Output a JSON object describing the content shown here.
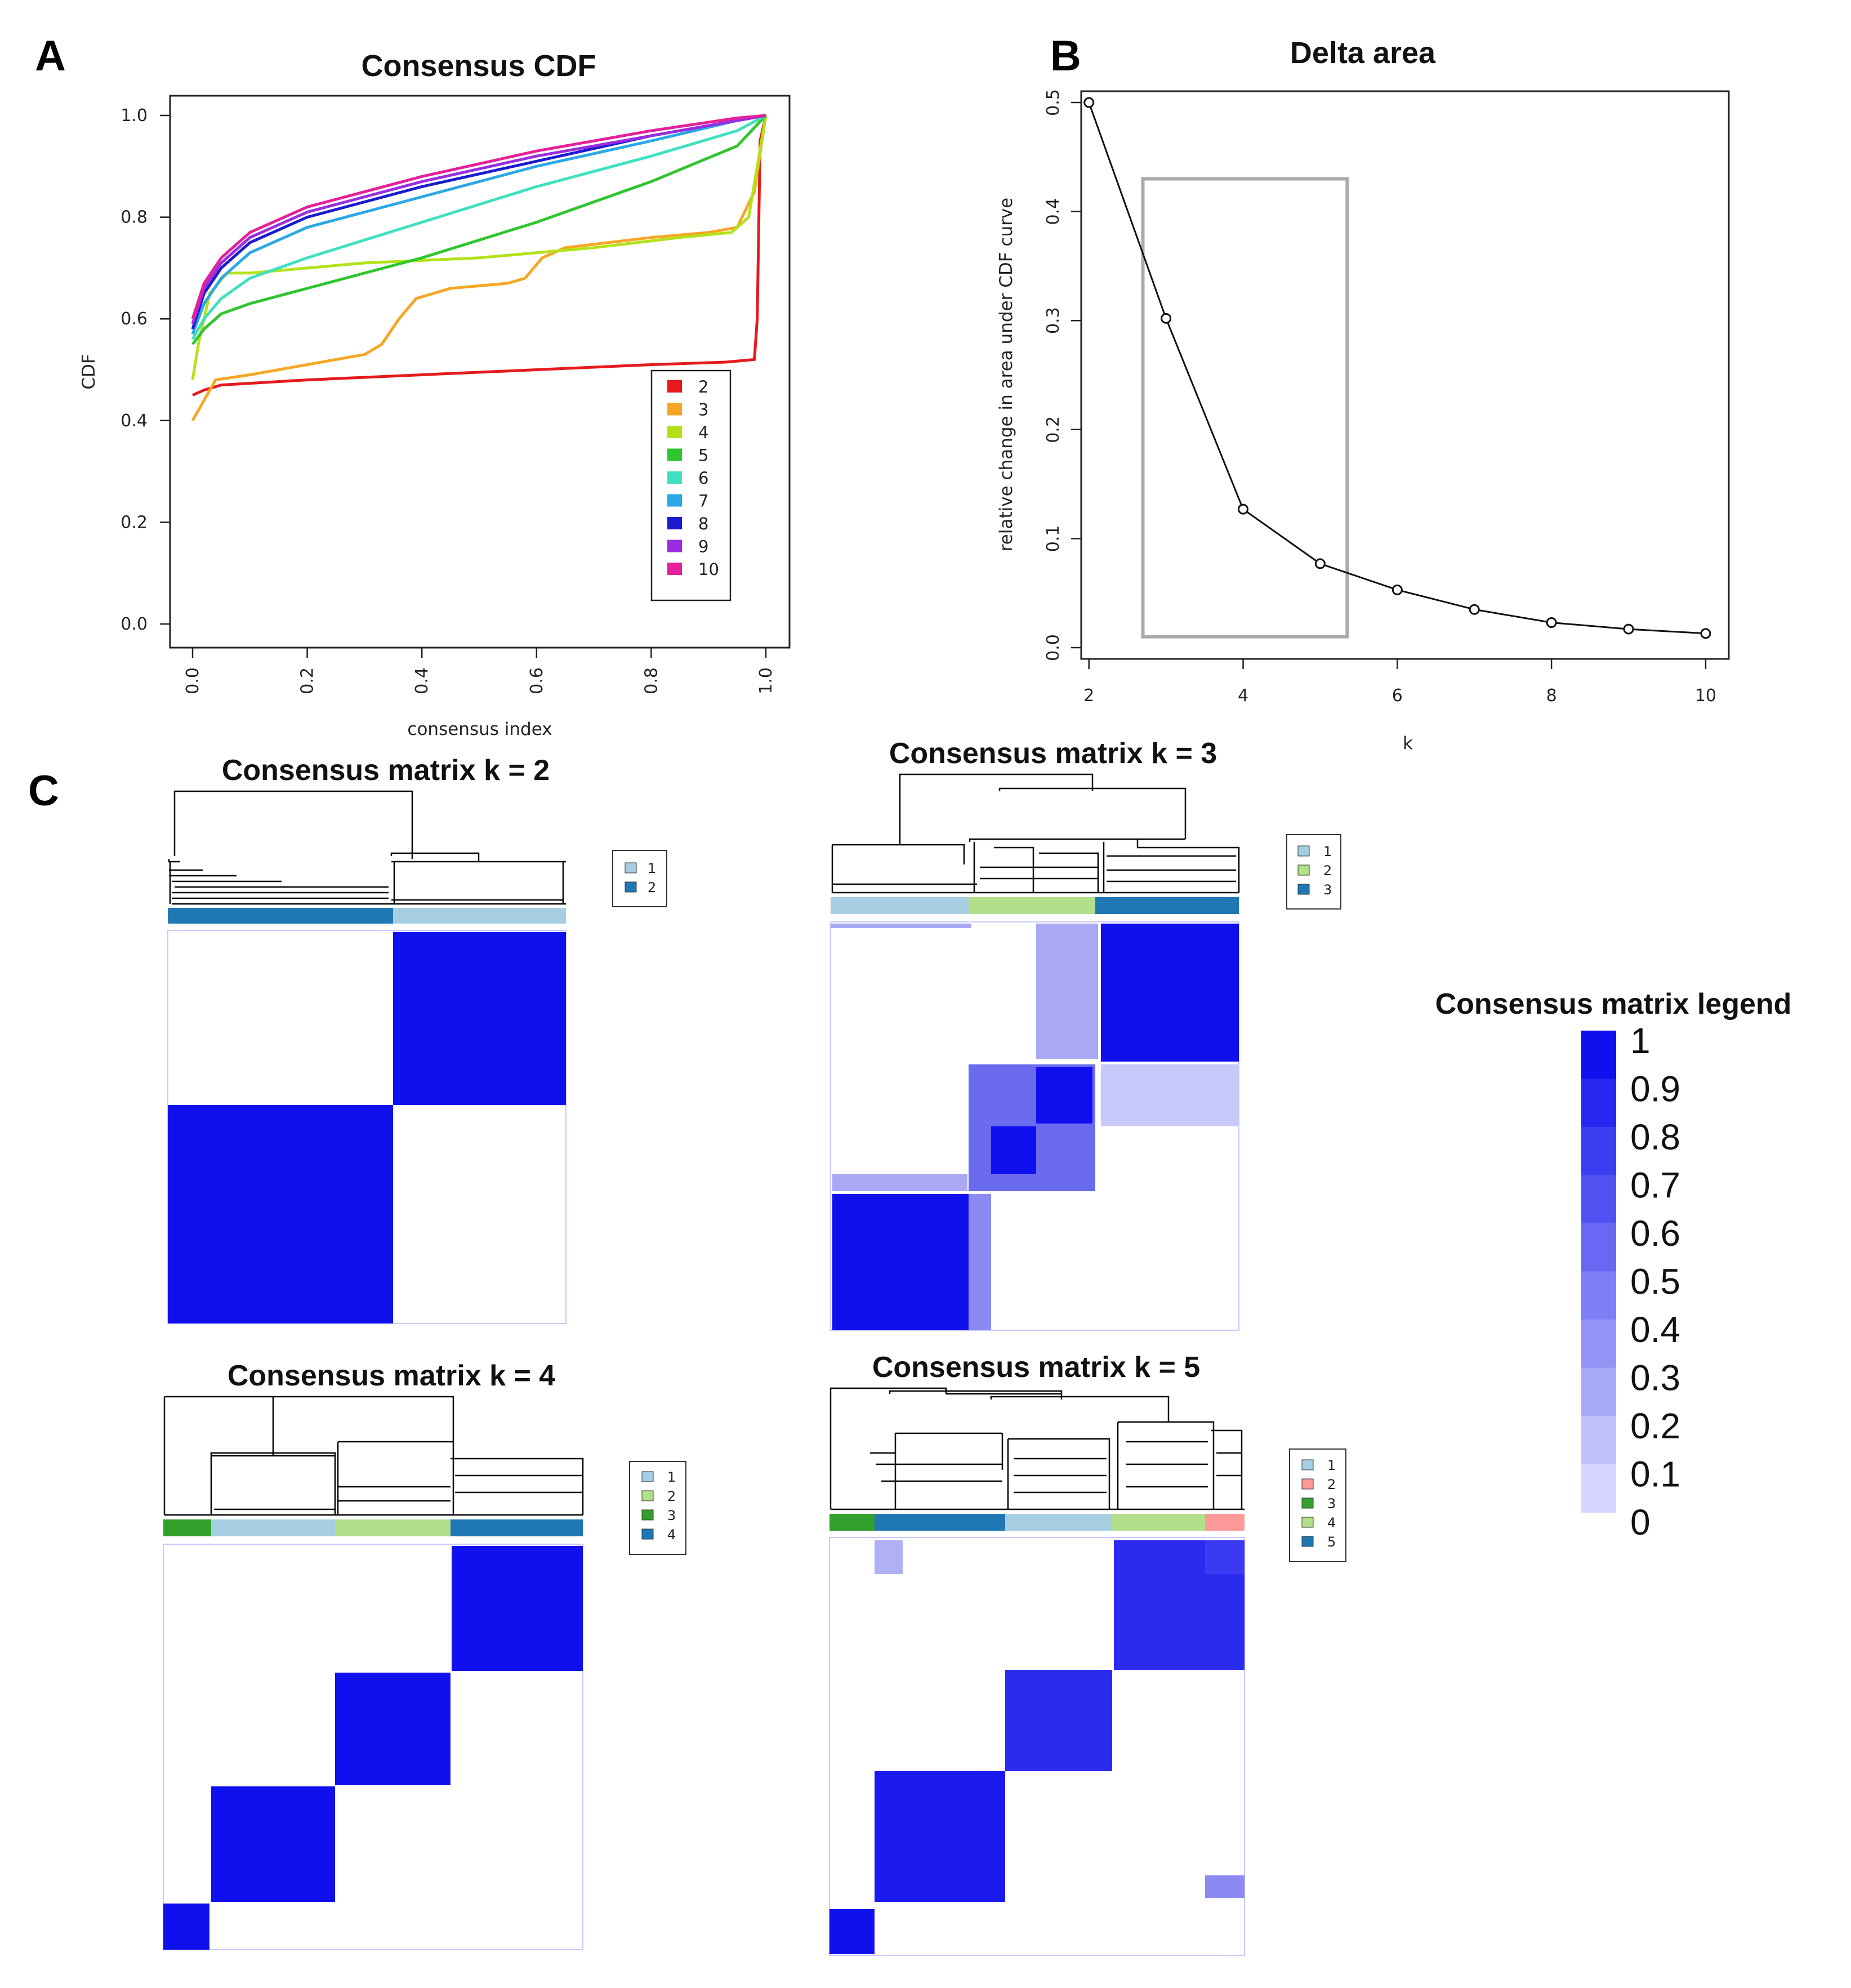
{
  "panels": {
    "a": "A",
    "b": "B",
    "c": "C"
  },
  "chart_data": [
    {
      "id": "consensus_cdf",
      "type": "line",
      "title": "Consensus CDF",
      "xlabel": "consensus index",
      "ylabel": "CDF",
      "xlim": [
        0,
        1
      ],
      "ylim": [
        0,
        1
      ],
      "xticks": [
        "0.0",
        "0.2",
        "0.4",
        "0.6",
        "0.8",
        "1.0"
      ],
      "yticks": [
        "0.0",
        "0.2",
        "0.4",
        "0.6",
        "0.8",
        "1.0"
      ],
      "legend_position": "bottom-right",
      "series": [
        {
          "name": "2",
          "color": "#e41a1c",
          "points": [
            [
              0,
              0.45
            ],
            [
              0.02,
              0.46
            ],
            [
              0.05,
              0.47
            ],
            [
              0.2,
              0.48
            ],
            [
              0.4,
              0.49
            ],
            [
              0.6,
              0.5
            ],
            [
              0.8,
              0.51
            ],
            [
              0.93,
              0.515
            ],
            [
              0.98,
              0.52
            ],
            [
              0.985,
              0.6
            ],
            [
              0.99,
              0.95
            ],
            [
              1,
              1
            ]
          ]
        },
        {
          "name": "3",
          "color": "#f5a623",
          "points": [
            [
              0,
              0.4
            ],
            [
              0.02,
              0.44
            ],
            [
              0.04,
              0.48
            ],
            [
              0.1,
              0.49
            ],
            [
              0.2,
              0.51
            ],
            [
              0.3,
              0.53
            ],
            [
              0.33,
              0.55
            ],
            [
              0.36,
              0.6
            ],
            [
              0.39,
              0.64
            ],
            [
              0.45,
              0.66
            ],
            [
              0.55,
              0.67
            ],
            [
              0.58,
              0.68
            ],
            [
              0.61,
              0.72
            ],
            [
              0.65,
              0.74
            ],
            [
              0.8,
              0.76
            ],
            [
              0.9,
              0.77
            ],
            [
              0.95,
              0.78
            ],
            [
              0.98,
              0.85
            ],
            [
              1,
              1
            ]
          ]
        },
        {
          "name": "4",
          "color": "#b3e219",
          "points": [
            [
              0,
              0.48
            ],
            [
              0.01,
              0.55
            ],
            [
              0.03,
              0.65
            ],
            [
              0.06,
              0.69
            ],
            [
              0.1,
              0.69
            ],
            [
              0.3,
              0.71
            ],
            [
              0.5,
              0.72
            ],
            [
              0.7,
              0.74
            ],
            [
              0.85,
              0.76
            ],
            [
              0.94,
              0.77
            ],
            [
              0.97,
              0.8
            ],
            [
              1,
              1
            ]
          ]
        },
        {
          "name": "5",
          "color": "#2ec52e",
          "points": [
            [
              0,
              0.55
            ],
            [
              0.02,
              0.58
            ],
            [
              0.05,
              0.61
            ],
            [
              0.1,
              0.63
            ],
            [
              0.2,
              0.66
            ],
            [
              0.4,
              0.72
            ],
            [
              0.6,
              0.79
            ],
            [
              0.8,
              0.87
            ],
            [
              0.95,
              0.94
            ],
            [
              1,
              1
            ]
          ]
        },
        {
          "name": "6",
          "color": "#3fe0c0",
          "points": [
            [
              0,
              0.56
            ],
            [
              0.02,
              0.6
            ],
            [
              0.05,
              0.64
            ],
            [
              0.1,
              0.68
            ],
            [
              0.2,
              0.72
            ],
            [
              0.4,
              0.79
            ],
            [
              0.6,
              0.86
            ],
            [
              0.8,
              0.92
            ],
            [
              0.95,
              0.97
            ],
            [
              1,
              1
            ]
          ]
        },
        {
          "name": "7",
          "color": "#2aa8e6",
          "points": [
            [
              0,
              0.57
            ],
            [
              0.02,
              0.63
            ],
            [
              0.05,
              0.68
            ],
            [
              0.1,
              0.73
            ],
            [
              0.2,
              0.78
            ],
            [
              0.4,
              0.84
            ],
            [
              0.6,
              0.9
            ],
            [
              0.8,
              0.95
            ],
            [
              0.95,
              0.99
            ],
            [
              1,
              1
            ]
          ]
        },
        {
          "name": "8",
          "color": "#1a1acf",
          "points": [
            [
              0,
              0.58
            ],
            [
              0.02,
              0.65
            ],
            [
              0.05,
              0.7
            ],
            [
              0.1,
              0.75
            ],
            [
              0.2,
              0.8
            ],
            [
              0.4,
              0.86
            ],
            [
              0.6,
              0.91
            ],
            [
              0.8,
              0.96
            ],
            [
              0.95,
              0.99
            ],
            [
              1,
              1
            ]
          ]
        },
        {
          "name": "9",
          "color": "#9b2ce0",
          "points": [
            [
              0,
              0.59
            ],
            [
              0.02,
              0.66
            ],
            [
              0.05,
              0.71
            ],
            [
              0.1,
              0.76
            ],
            [
              0.2,
              0.81
            ],
            [
              0.4,
              0.87
            ],
            [
              0.6,
              0.92
            ],
            [
              0.8,
              0.96
            ],
            [
              0.95,
              0.99
            ],
            [
              1,
              1
            ]
          ]
        },
        {
          "name": "10",
          "color": "#e61f9a",
          "points": [
            [
              0,
              0.6
            ],
            [
              0.02,
              0.67
            ],
            [
              0.05,
              0.72
            ],
            [
              0.1,
              0.77
            ],
            [
              0.2,
              0.82
            ],
            [
              0.4,
              0.88
            ],
            [
              0.6,
              0.93
            ],
            [
              0.8,
              0.97
            ],
            [
              0.95,
              0.995
            ],
            [
              1,
              1
            ]
          ]
        }
      ]
    },
    {
      "id": "delta_area",
      "type": "line",
      "title": "Delta area",
      "xlabel": "k",
      "ylabel": "relative change in area under CDF curve",
      "xlim": [
        1.9,
        10.3
      ],
      "ylim": [
        0,
        0.5
      ],
      "xticks": [
        "2",
        "4",
        "6",
        "8",
        "10"
      ],
      "yticks": [
        "0.0",
        "0.1",
        "0.2",
        "0.3",
        "0.4",
        "0.5"
      ],
      "x": [
        2,
        3,
        4,
        5,
        6,
        7,
        8,
        9,
        10
      ],
      "y": [
        0.5,
        0.302,
        0.127,
        0.077,
        0.053,
        0.035,
        0.023,
        0.017,
        0.013
      ],
      "highlight_x": [
        2.7,
        5.35
      ],
      "highlight_y": [
        0.01,
        0.43
      ]
    }
  ],
  "consensus_matrices": [
    {
      "id": "k2",
      "title": "Consensus matrix k = 2",
      "legend": [
        "1",
        "2"
      ],
      "legend_colors": [
        "#a6cee3",
        "#1f78b4"
      ]
    },
    {
      "id": "k3",
      "title": "Consensus matrix k = 3",
      "legend": [
        "1",
        "2",
        "3"
      ],
      "legend_colors": [
        "#a6cee3",
        "#b2df8a",
        "#1f78b4"
      ]
    },
    {
      "id": "k4",
      "title": "Consensus matrix k = 4",
      "legend": [
        "1",
        "2",
        "3",
        "4"
      ],
      "legend_colors": [
        "#a6cee3",
        "#b2df8a",
        "#33a02c",
        "#1f78b4"
      ]
    },
    {
      "id": "k5",
      "title": "Consensus matrix k = 5",
      "legend": [
        "1",
        "2",
        "3",
        "4",
        "5"
      ],
      "legend_colors": [
        "#a6cee3",
        "#fb9a99",
        "#33a02c",
        "#b2df8a",
        "#1f78b4"
      ]
    }
  ],
  "consensus_legend": {
    "title": "Consensus matrix legend",
    "labels": [
      "1",
      "0.9",
      "0.8",
      "0.7",
      "0.6",
      "0.5",
      "0.4",
      "0.3",
      "0.2",
      "0.1",
      "0"
    ]
  }
}
